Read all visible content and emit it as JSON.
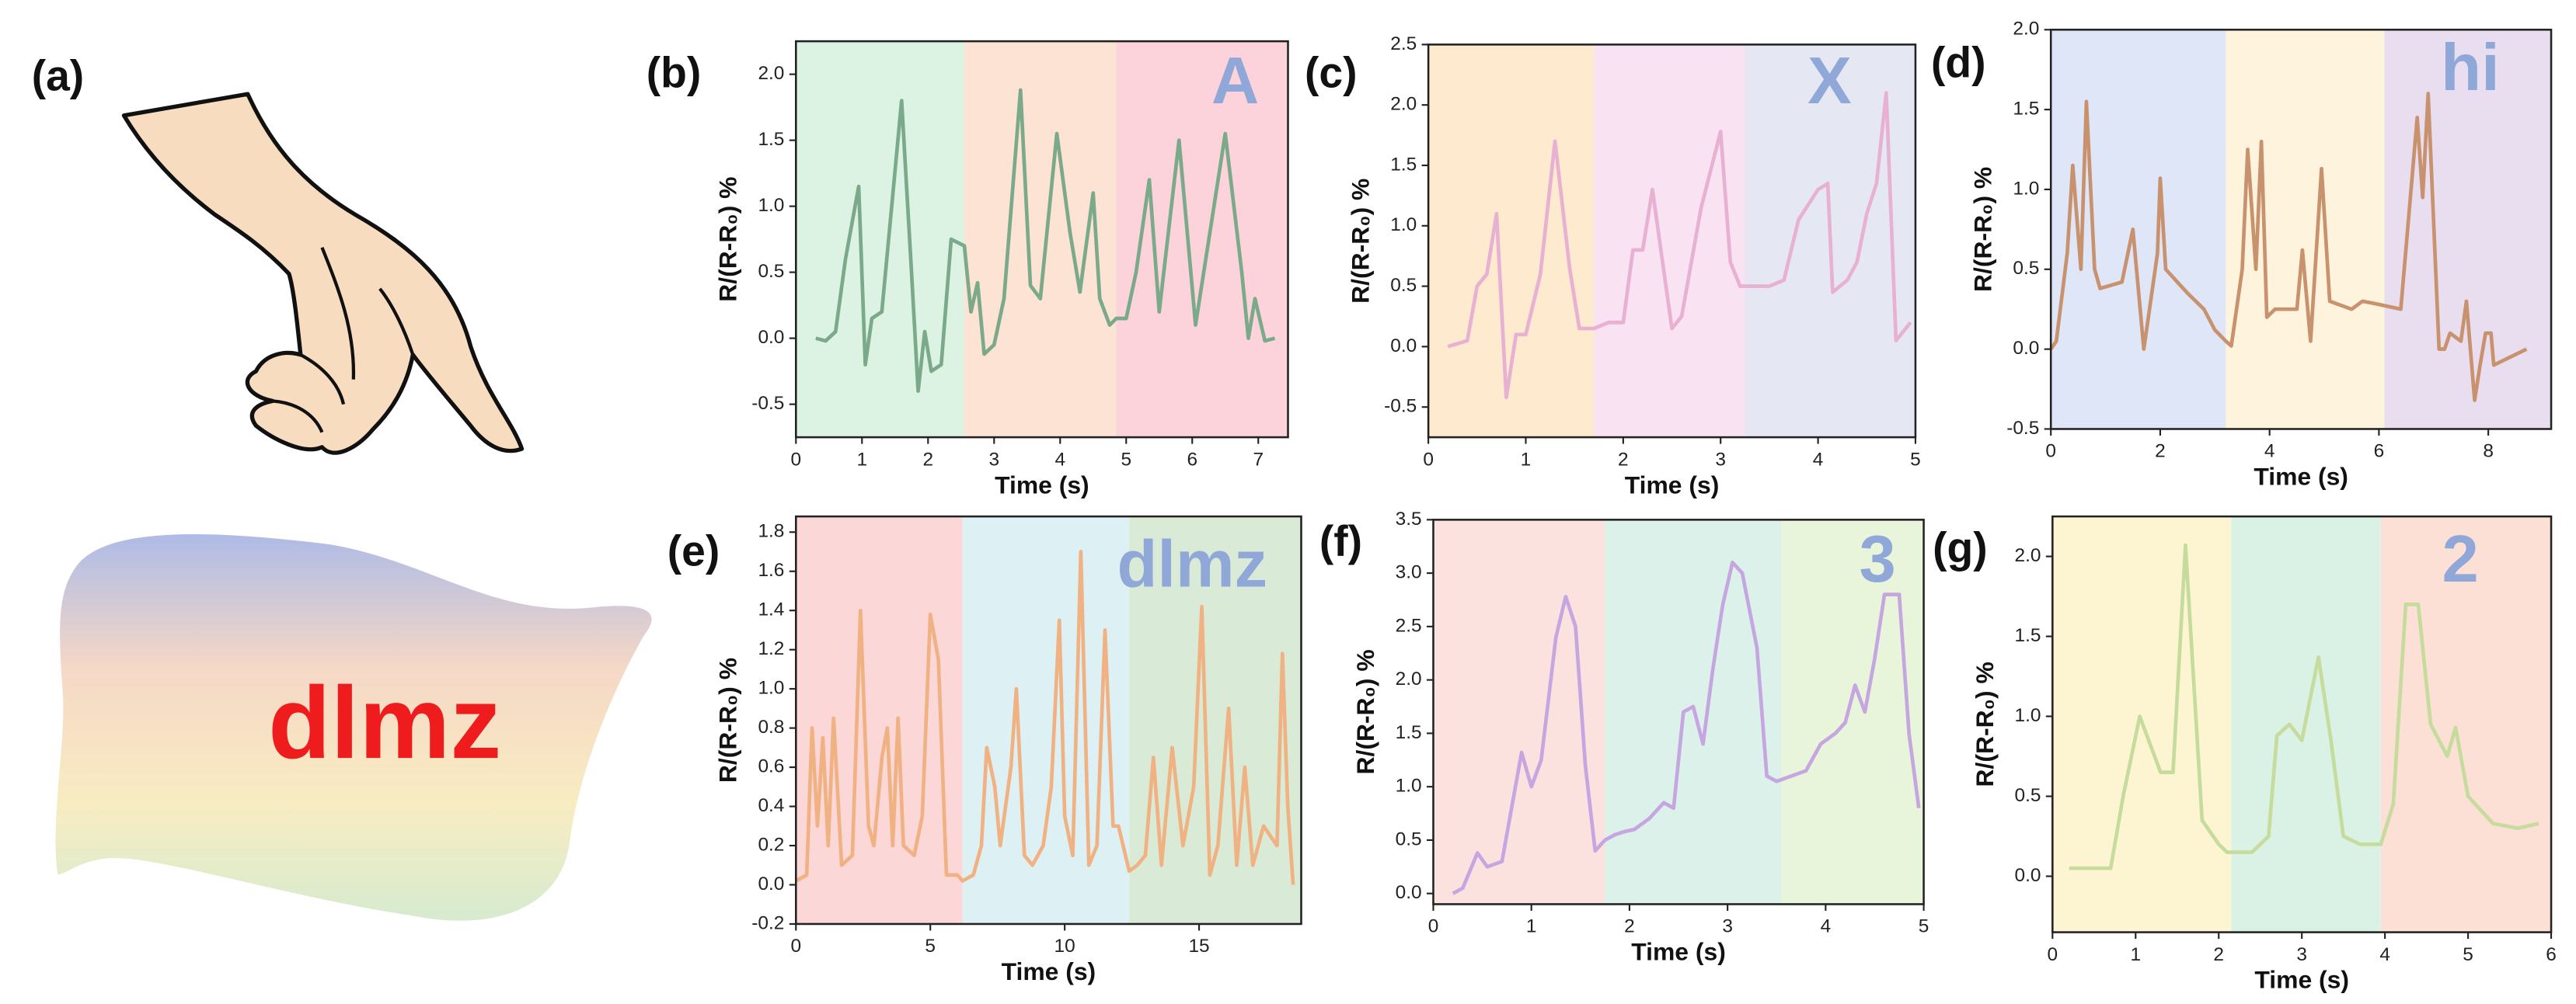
{
  "figure": {
    "panel_label": "(a)",
    "text": "dlmz"
  },
  "chart_data": [
    {
      "type": "line",
      "panel_label": "(b)",
      "annotation": "A",
      "xlabel": "Time (s)",
      "ylabel": "R/(R-R₀) %",
      "xlim": [
        0,
        7.45
      ],
      "ylim": [
        -0.75,
        2.25
      ],
      "xticks": [
        0,
        1,
        2,
        3,
        4,
        5,
        6,
        7
      ],
      "yticks": [
        -0.5,
        {
          "value": 0,
          "label": "0.0"
        },
        0.5,
        {
          "value": 1,
          "label": "1.0"
        },
        1.5,
        {
          "value": 2,
          "label": "2.0"
        }
      ],
      "shading": [
        {
          "x0": 0,
          "x1": 2.55,
          "color": "#dcf3e3"
        },
        {
          "x0": 2.55,
          "x1": 4.85,
          "color": "#fde3d4"
        },
        {
          "x0": 4.85,
          "x1": 7.45,
          "color": "#fcd3da"
        }
      ],
      "x": [
        0.3,
        0.45,
        0.6,
        0.75,
        0.95,
        1.05,
        1.15,
        1.3,
        1.6,
        1.75,
        1.85,
        1.95,
        2.05,
        2.2,
        2.35,
        2.55,
        2.65,
        2.75,
        2.85,
        3.0,
        3.15,
        3.4,
        3.55,
        3.7,
        3.95,
        4.15,
        4.3,
        4.5,
        4.6,
        4.75,
        4.85,
        5.0,
        5.15,
        5.35,
        5.5,
        5.8,
        6.05,
        6.5,
        6.75,
        6.85,
        6.95,
        7.1,
        7.25
      ],
      "series": [
        {
          "color": "#7aaa8a",
          "values": [
            0,
            -0.02,
            0.05,
            0.6,
            1.15,
            -0.2,
            0.15,
            0.2,
            1.8,
            0.5,
            -0.4,
            0.05,
            -0.25,
            -0.2,
            0.75,
            0.7,
            0.2,
            0.42,
            -0.12,
            -0.05,
            0.3,
            1.88,
            0.4,
            0.3,
            1.55,
            0.8,
            0.35,
            1.1,
            0.3,
            0.1,
            0.15,
            0.15,
            0.5,
            1.2,
            0.2,
            1.5,
            0.1,
            1.55,
            0.5,
            0,
            0.3,
            -0.02,
            0
          ]
        }
      ]
    },
    {
      "type": "line",
      "panel_label": "(c)",
      "annotation": "X",
      "xlabel": "Time (s)",
      "ylabel": "R/(R-R₀) %",
      "xlim": [
        0,
        5
      ],
      "ylim": [
        -0.75,
        2.5
      ],
      "xticks": [
        0,
        1,
        2,
        3,
        4,
        5
      ],
      "yticks": [
        -0.5,
        {
          "value": 0,
          "label": "0.0"
        },
        0.5,
        {
          "value": 1,
          "label": "1.0"
        },
        1.5,
        {
          "value": 2,
          "label": "2.0"
        },
        2.5
      ],
      "shading": [
        {
          "x0": 0,
          "x1": 1.7,
          "color": "#fdeacf"
        },
        {
          "x0": 1.7,
          "x1": 3.25,
          "color": "#f9e2f1"
        },
        {
          "x0": 3.25,
          "x1": 5,
          "color": "#e5e8f3"
        }
      ],
      "x": [
        0.2,
        0.4,
        0.5,
        0.6,
        0.7,
        0.8,
        0.9,
        1.0,
        1.15,
        1.3,
        1.45,
        1.55,
        1.7,
        1.85,
        2.0,
        2.1,
        2.2,
        2.3,
        2.5,
        2.6,
        2.8,
        3.0,
        3.1,
        3.2,
        3.5,
        3.65,
        3.8,
        4.0,
        4.1,
        4.15,
        4.3,
        4.4,
        4.5,
        4.6,
        4.7,
        4.8,
        4.95
      ],
      "series": [
        {
          "color": "#e8b0d2",
          "values": [
            0,
            0.05,
            0.5,
            0.6,
            1.1,
            -0.42,
            0.1,
            0.1,
            0.6,
            1.7,
            0.65,
            0.15,
            0.15,
            0.2,
            0.2,
            0.8,
            0.8,
            1.3,
            0.15,
            0.25,
            1.15,
            1.78,
            0.7,
            0.5,
            0.5,
            0.55,
            1.05,
            1.3,
            1.35,
            0.45,
            0.55,
            0.7,
            1.1,
            1.35,
            2.1,
            0.05,
            0.2
          ]
        }
      ]
    },
    {
      "type": "line",
      "panel_label": "(d)",
      "annotation": "hi",
      "xlabel": "Time (s)",
      "ylabel": "R/(R-R₀) %",
      "xlim": [
        0,
        9.15
      ],
      "ylim": [
        -0.5,
        2
      ],
      "xticks": [
        0,
        2,
        4,
        6,
        8
      ],
      "yticks": [
        -0.5,
        {
          "value": 0,
          "label": "0.0"
        },
        0.5,
        {
          "value": 1,
          "label": "1.0"
        },
        1.5,
        {
          "value": 2,
          "label": "2.0"
        }
      ],
      "shading": [
        {
          "x0": 0,
          "x1": 3.2,
          "color": "#dfe6f8"
        },
        {
          "x0": 3.2,
          "x1": 6.1,
          "color": "#fef4de"
        },
        {
          "x0": 6.1,
          "x1": 9.15,
          "color": "#e8def0"
        }
      ],
      "x": [
        0,
        0.1,
        0.3,
        0.4,
        0.55,
        0.65,
        0.8,
        0.9,
        1.3,
        1.5,
        1.7,
        1.95,
        2.0,
        2.1,
        2.5,
        2.8,
        3.0,
        3.2,
        3.3,
        3.5,
        3.6,
        3.75,
        3.85,
        3.95,
        4.1,
        4.5,
        4.6,
        4.75,
        4.95,
        5.1,
        5.5,
        5.7,
        6.0,
        6.4,
        6.7,
        6.8,
        6.9,
        7.1,
        7.2,
        7.3,
        7.5,
        7.6,
        7.75,
        7.85,
        7.95,
        8.05,
        8.1,
        8.4,
        8.7
      ],
      "series": [
        {
          "color": "#c8926e",
          "values": [
            0,
            0.05,
            0.6,
            1.15,
            0.5,
            1.55,
            0.5,
            0.38,
            0.42,
            0.75,
            0,
            0.6,
            1.07,
            0.5,
            0.35,
            0.25,
            0.12,
            0.05,
            0.02,
            0.5,
            1.25,
            0.5,
            1.3,
            0.2,
            0.25,
            0.25,
            0.62,
            0.05,
            1.13,
            0.3,
            0.25,
            0.3,
            0.28,
            0.25,
            1.45,
            0.95,
            1.6,
            0,
            0,
            0.1,
            0.05,
            0.3,
            -0.32,
            -0.1,
            0.1,
            0.1,
            -0.1,
            -0.05,
            0
          ]
        }
      ]
    },
    {
      "type": "line",
      "panel_label": "(e)",
      "annotation": "dlmz",
      "xlabel": "Time (s)",
      "ylabel": "R/(R-R₀) %",
      "xlim": [
        0,
        18.8
      ],
      "ylim": [
        -0.2,
        1.88
      ],
      "xticks": [
        0,
        5,
        10,
        15
      ],
      "yticks": [
        -0.2,
        {
          "value": 0,
          "label": "0.0"
        },
        0.2,
        0.4,
        0.6,
        0.8,
        {
          "value": 1,
          "label": "1.0"
        },
        1.2,
        1.4,
        1.6,
        1.8
      ],
      "shading": [
        {
          "x0": 0,
          "x1": 6.2,
          "color": "#fcd7d7"
        },
        {
          "x0": 6.2,
          "x1": 12.4,
          "color": "#ddf1f5"
        },
        {
          "x0": 12.4,
          "x1": 18.8,
          "color": "#d9ebd7"
        }
      ],
      "x": [
        0,
        0.4,
        0.6,
        0.8,
        1.0,
        1.2,
        1.4,
        1.7,
        2.1,
        2.4,
        2.7,
        2.9,
        3.2,
        3.4,
        3.6,
        3.8,
        4.0,
        4.4,
        4.7,
        5.0,
        5.3,
        5.6,
        6.0,
        6.2,
        6.6,
        6.9,
        7.1,
        7.4,
        7.6,
        8.0,
        8.2,
        8.5,
        8.8,
        9.2,
        9.5,
        9.8,
        10.0,
        10.3,
        10.6,
        10.9,
        11.2,
        11.5,
        11.8,
        12.0,
        12.4,
        12.7,
        13.0,
        13.3,
        13.6,
        14.0,
        14.4,
        14.8,
        15.1,
        15.4,
        15.7,
        16.1,
        16.4,
        16.7,
        17.0,
        17.4,
        17.9,
        18.1,
        18.3,
        18.5
      ],
      "series": [
        {
          "color": "#f0b282",
          "values": [
            0.02,
            0.05,
            0.8,
            0.3,
            0.75,
            0.2,
            0.85,
            0.1,
            0.15,
            1.4,
            0.3,
            0.2,
            0.65,
            0.8,
            0.2,
            0.85,
            0.2,
            0.15,
            0.35,
            1.38,
            1.15,
            0.05,
            0.05,
            0.02,
            0.05,
            0.2,
            0.7,
            0.5,
            0.2,
            0.6,
            1.0,
            0.15,
            0.1,
            0.2,
            0.5,
            1.35,
            0.35,
            0.15,
            1.7,
            0.1,
            0.2,
            1.3,
            0.3,
            0.3,
            0.07,
            0.1,
            0.15,
            0.65,
            0.1,
            0.7,
            0.2,
            0.5,
            1.42,
            0.05,
            0.2,
            0.9,
            0.1,
            0.6,
            0.1,
            0.3,
            0.2,
            1.18,
            0.4,
            0
          ]
        }
      ]
    },
    {
      "type": "line",
      "panel_label": "(f)",
      "annotation": "3",
      "xlabel": "Time (s)",
      "ylabel": "R/(R-R₀) %",
      "xlim": [
        0,
        5
      ],
      "ylim": [
        -0.1,
        3.5
      ],
      "xticks": [
        0,
        1,
        2,
        3,
        4,
        5
      ],
      "yticks": [
        {
          "value": 0,
          "label": "0.0"
        },
        0.5,
        {
          "value": 1,
          "label": "1.0"
        },
        1.5,
        {
          "value": 2,
          "label": "2.0"
        },
        2.5,
        {
          "value": 3,
          "label": "3.0"
        },
        3.5
      ],
      "shading": [
        {
          "x0": 0,
          "x1": 1.75,
          "color": "#fce2de"
        },
        {
          "x0": 1.75,
          "x1": 3.55,
          "color": "#ddf1eb"
        },
        {
          "x0": 3.55,
          "x1": 5,
          "color": "#e9f5da"
        }
      ],
      "x": [
        0.2,
        0.3,
        0.45,
        0.55,
        0.7,
        0.9,
        1.0,
        1.1,
        1.25,
        1.35,
        1.45,
        1.55,
        1.65,
        1.75,
        1.85,
        1.95,
        2.05,
        2.2,
        2.35,
        2.45,
        2.55,
        2.65,
        2.75,
        2.85,
        2.95,
        3.05,
        3.15,
        3.3,
        3.4,
        3.5,
        3.65,
        3.8,
        3.95,
        4.1,
        4.2,
        4.3,
        4.4,
        4.5,
        4.6,
        4.75,
        4.85,
        4.95
      ],
      "series": [
        {
          "color": "#c6a6e0",
          "values": [
            0,
            0.05,
            0.38,
            0.25,
            0.3,
            1.32,
            1.0,
            1.25,
            2.4,
            2.78,
            2.5,
            1.2,
            0.4,
            0.5,
            0.55,
            0.58,
            0.6,
            0.7,
            0.85,
            0.8,
            1.7,
            1.75,
            1.4,
            2.1,
            2.7,
            3.1,
            3.0,
            2.3,
            1.1,
            1.05,
            1.1,
            1.15,
            1.4,
            1.5,
            1.6,
            1.95,
            1.7,
            2.2,
            2.8,
            2.8,
            1.5,
            0.8
          ]
        }
      ]
    },
    {
      "type": "line",
      "panel_label": "(g)",
      "annotation": "2",
      "xlabel": "Time (s)",
      "ylabel": "R/(R-R₀) %",
      "xlim": [
        0,
        6
      ],
      "ylim": [
        -0.35,
        2.25
      ],
      "xticks": [
        0,
        1,
        2,
        3,
        4,
        5,
        6
      ],
      "yticks": [
        {
          "value": 0,
          "label": "0.0"
        },
        0.5,
        {
          "value": 1,
          "label": "1.0"
        },
        1.5,
        {
          "value": 2,
          "label": "2.0"
        }
      ],
      "shading": [
        {
          "x0": 0,
          "x1": 2.15,
          "color": "#fdf5d2"
        },
        {
          "x0": 2.15,
          "x1": 3.95,
          "color": "#daf1e6"
        },
        {
          "x0": 3.95,
          "x1": 6,
          "color": "#fcdfd5"
        }
      ],
      "x": [
        0.2,
        0.7,
        0.85,
        1.05,
        1.3,
        1.45,
        1.6,
        1.8,
        2.0,
        2.1,
        2.4,
        2.6,
        2.7,
        2.85,
        3.0,
        3.2,
        3.35,
        3.5,
        3.7,
        3.95,
        4.1,
        4.25,
        4.4,
        4.55,
        4.75,
        4.85,
        5.0,
        5.3,
        5.6,
        5.85
      ],
      "series": [
        {
          "color": "#c6dc9c",
          "values": [
            0.05,
            0.05,
            0.5,
            1.0,
            0.65,
            0.65,
            2.07,
            0.35,
            0.2,
            0.15,
            0.15,
            0.25,
            0.88,
            0.95,
            0.85,
            1.37,
            0.85,
            0.25,
            0.2,
            0.2,
            0.45,
            1.7,
            1.7,
            0.95,
            0.75,
            0.93,
            0.5,
            0.33,
            0.3,
            0.33
          ]
        }
      ]
    }
  ]
}
